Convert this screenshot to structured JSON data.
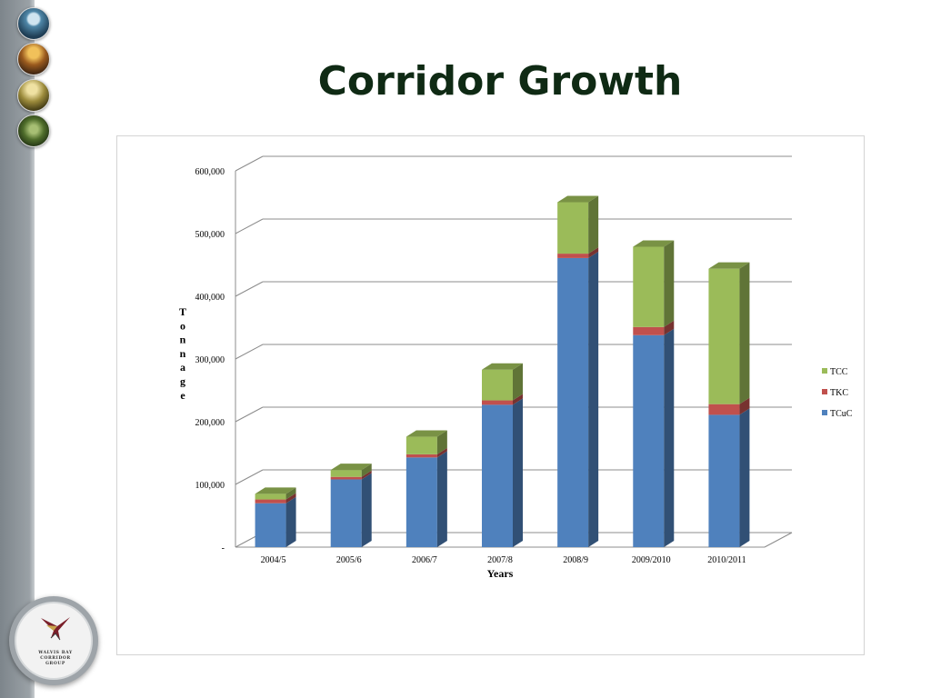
{
  "slide": {
    "title": "Corridor Growth"
  },
  "logo": {
    "line1": "WALVIS BAY",
    "line2": "CORRIDOR",
    "line3": "GROUP"
  },
  "colors": {
    "TCuC": "#4f81bd",
    "TKC": "#c0504d",
    "TCC": "#9bbb59",
    "title": "#0f2a14"
  },
  "chart_data": {
    "type": "bar",
    "stacked": true,
    "three_d": true,
    "title": "",
    "xlabel": "Years",
    "ylabel": "Tonnage",
    "ylim": [
      0,
      600000
    ],
    "y_ticks": [
      0,
      100000,
      200000,
      300000,
      400000,
      500000,
      600000
    ],
    "y_tick_labels": [
      "-",
      "100,000",
      "200,000",
      "300,000",
      "400,000",
      "500,000",
      "600,000"
    ],
    "grid": true,
    "legend_position": "right",
    "categories": [
      "2004/5",
      "2005/6",
      "2006/7",
      "2007/8",
      "2008/9",
      "2009/2010",
      "2010/2011"
    ],
    "series": [
      {
        "name": "TCuC",
        "values": [
          70000,
          108000,
          143000,
          227000,
          461000,
          338000,
          211000
        ]
      },
      {
        "name": "TKC",
        "values": [
          6000,
          4000,
          5000,
          7000,
          7000,
          13000,
          17000
        ]
      },
      {
        "name": "TCC",
        "values": [
          9000,
          11000,
          28000,
          49000,
          82000,
          128000,
          216000
        ]
      }
    ],
    "legend_order": [
      "TCC",
      "TKC",
      "TCuC"
    ]
  }
}
